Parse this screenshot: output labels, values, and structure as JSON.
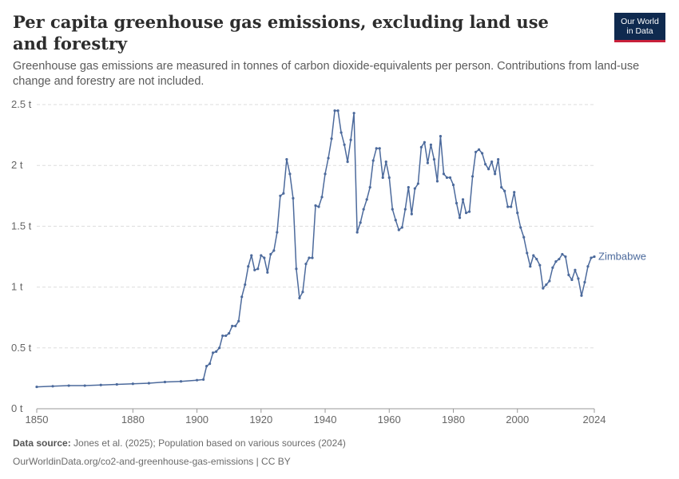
{
  "header": {
    "title": "Per capita greenhouse gas emissions, excluding land use and forestry",
    "subtitle": "Greenhouse gas emissions are measured in tonnes of carbon dioxide-equivalents per person. Contributions from land-use change and forestry are not included."
  },
  "logo": {
    "line1": "Our World",
    "line2": "in Data"
  },
  "footer": {
    "source_label": "Data source:",
    "source_text": " Jones et al. (2025); Population based on various sources (2024)",
    "url": "OurWorldinData.org/co2-and-greenhouse-gas-emissions | CC BY"
  },
  "colors": {
    "series": "#4c6a9c",
    "grid": "#dddddd",
    "axis": "#999999",
    "logo_bg": "#0f2a4f",
    "logo_accent": "#c8203a"
  },
  "chart_data": {
    "type": "line",
    "title": "Per capita greenhouse gas emissions, excluding land use and forestry",
    "xlim": [
      1850,
      2024
    ],
    "ylim": [
      0,
      2.5
    ],
    "x_ticks": [
      1850,
      1880,
      1900,
      1920,
      1940,
      1960,
      1980,
      2000,
      2024
    ],
    "x_tick_labels": [
      "1850",
      "1880",
      "1900",
      "1920",
      "1940",
      "1960",
      "1980",
      "2000",
      "2024"
    ],
    "y_ticks": [
      0,
      0.5,
      1,
      1.5,
      2,
      2.5
    ],
    "y_tick_labels": [
      "0 t",
      "0.5 t",
      "1 t",
      "1.5 t",
      "2 t",
      "2.5 t"
    ],
    "grid": "horizontal dashed",
    "series": [
      {
        "name": "Zimbabwe",
        "x": [
          1850,
          1855,
          1860,
          1865,
          1870,
          1875,
          1880,
          1885,
          1890,
          1895,
          1900,
          1902,
          1903,
          1904,
          1905,
          1906,
          1907,
          1908,
          1909,
          1910,
          1911,
          1912,
          1913,
          1914,
          1915,
          1916,
          1917,
          1918,
          1919,
          1920,
          1921,
          1922,
          1923,
          1924,
          1925,
          1926,
          1927,
          1928,
          1929,
          1930,
          1931,
          1932,
          1933,
          1934,
          1935,
          1936,
          1937,
          1938,
          1939,
          1940,
          1941,
          1942,
          1943,
          1944,
          1945,
          1946,
          1947,
          1948,
          1949,
          1950,
          1951,
          1952,
          1953,
          1954,
          1955,
          1956,
          1957,
          1958,
          1959,
          1960,
          1961,
          1962,
          1963,
          1964,
          1965,
          1966,
          1967,
          1968,
          1969,
          1970,
          1971,
          1972,
          1973,
          1974,
          1975,
          1976,
          1977,
          1978,
          1979,
          1980,
          1981,
          1982,
          1983,
          1984,
          1985,
          1986,
          1987,
          1988,
          1989,
          1990,
          1991,
          1992,
          1993,
          1994,
          1995,
          1996,
          1997,
          1998,
          1999,
          2000,
          2001,
          2002,
          2003,
          2004,
          2005,
          2006,
          2007,
          2008,
          2009,
          2010,
          2011,
          2012,
          2013,
          2014,
          2015,
          2016,
          2017,
          2018,
          2019,
          2020,
          2021,
          2022,
          2023,
          2024
        ],
        "y": [
          0.18,
          0.185,
          0.19,
          0.19,
          0.195,
          0.2,
          0.205,
          0.21,
          0.22,
          0.225,
          0.235,
          0.24,
          0.35,
          0.37,
          0.46,
          0.47,
          0.5,
          0.6,
          0.6,
          0.62,
          0.68,
          0.68,
          0.72,
          0.92,
          1.02,
          1.17,
          1.26,
          1.14,
          1.15,
          1.26,
          1.24,
          1.12,
          1.27,
          1.3,
          1.45,
          1.75,
          1.77,
          2.05,
          1.93,
          1.73,
          1.15,
          0.91,
          0.96,
          1.19,
          1.24,
          1.24,
          1.67,
          1.66,
          1.74,
          1.93,
          2.06,
          2.22,
          2.45,
          2.45,
          2.27,
          2.17,
          2.03,
          2.21,
          2.43,
          1.45,
          1.53,
          1.64,
          1.72,
          1.82,
          2.04,
          2.14,
          2.14,
          1.9,
          2.03,
          1.9,
          1.64,
          1.55,
          1.47,
          1.49,
          1.64,
          1.82,
          1.6,
          1.81,
          1.85,
          2.15,
          2.19,
          2.02,
          2.17,
          2.05,
          1.87,
          2.24,
          1.93,
          1.9,
          1.9,
          1.84,
          1.69,
          1.57,
          1.72,
          1.61,
          1.62,
          1.91,
          2.11,
          2.13,
          2.1,
          2.01,
          1.97,
          2.03,
          1.93,
          2.05,
          1.82,
          1.79,
          1.66,
          1.66,
          1.78,
          1.61,
          1.49,
          1.41,
          1.28,
          1.17,
          1.26,
          1.23,
          1.18,
          0.99,
          1.02,
          1.05,
          1.16,
          1.21,
          1.23,
          1.27,
          1.25,
          1.1,
          1.06,
          1.14,
          1.07,
          0.93,
          1.04,
          1.17,
          1.24,
          1.25
        ]
      }
    ]
  }
}
